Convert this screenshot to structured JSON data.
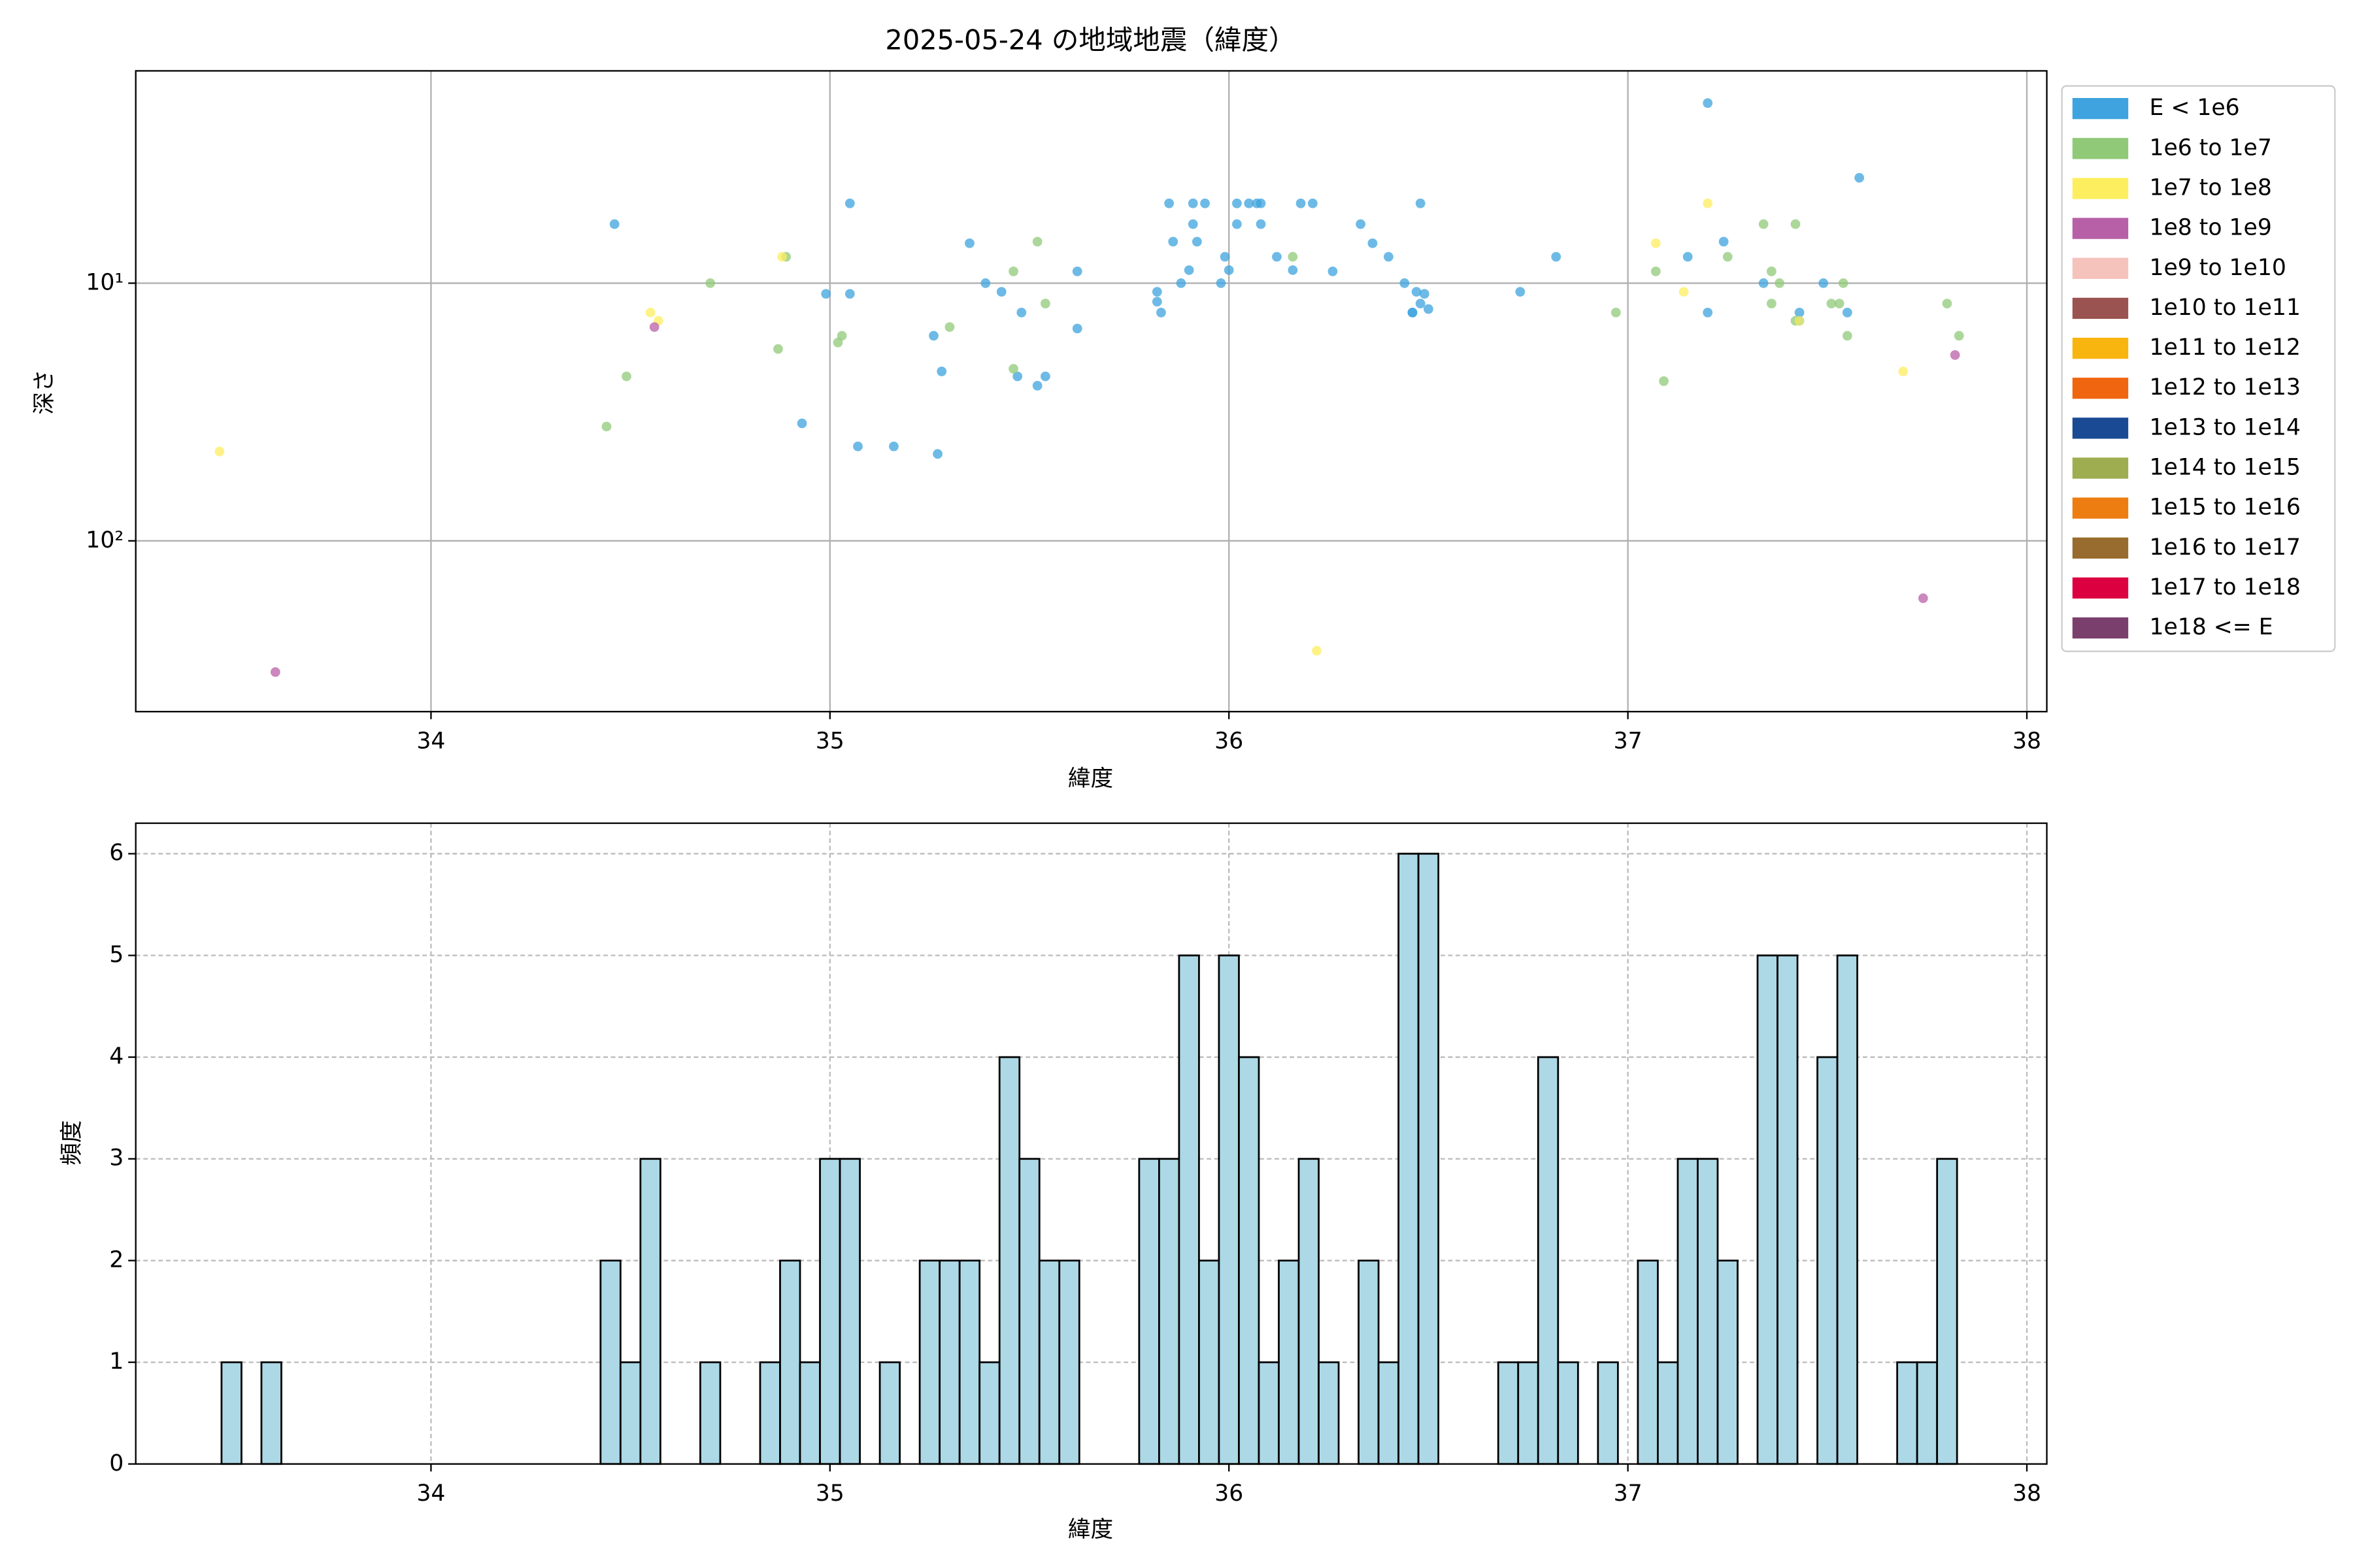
{
  "chart_data": [
    {
      "type": "scatter",
      "title": "2025-05-24 の地域地震（緯度）",
      "xlabel": "緯度",
      "ylabel": "深さ",
      "xlim": [
        33.26,
        38.05
      ],
      "xticks": [
        34,
        35,
        36,
        37,
        38
      ],
      "ylim": [
        460,
        1.5
      ],
      "yscale": "log",
      "yticks": [
        {
          "value": 10,
          "label": "10¹"
        },
        {
          "value": 100,
          "label": "10²"
        }
      ],
      "grid": true,
      "legend": "outside right",
      "series": [
        {
          "name": "E < 1e6",
          "color": "#3ea3de",
          "x": [
            34.46,
            35.05,
            34.99,
            35.05,
            34.93,
            35.07,
            35.16,
            35.27,
            35.26,
            35.28,
            35.35,
            35.39,
            35.43,
            35.47,
            35.48,
            35.52,
            35.54,
            35.62,
            35.62,
            35.82,
            35.82,
            35.83,
            35.85,
            35.86,
            35.88,
            35.9,
            35.91,
            35.91,
            35.92,
            35.94,
            35.98,
            35.99,
            36.0,
            36.02,
            36.02,
            36.05,
            36.07,
            36.08,
            36.08,
            36.12,
            36.16,
            36.18,
            36.21,
            36.26,
            36.33,
            36.36,
            36.4,
            36.44,
            36.46,
            36.47,
            36.48,
            36.49,
            36.48,
            36.5,
            36.46,
            36.73,
            36.82,
            37.15,
            37.2,
            37.2,
            37.24,
            37.34,
            37.43,
            37.43,
            37.49,
            37.55,
            37.58
          ],
          "values": [
            5.9,
            4.9,
            11,
            11,
            35,
            43,
            43,
            46,
            16,
            22,
            7,
            10,
            10.8,
            23,
            13,
            25,
            23,
            9,
            15,
            10.8,
            11.8,
            13,
            4.9,
            6.9,
            10,
            8.9,
            5.9,
            4.9,
            6.9,
            4.9,
            10,
            7.9,
            8.9,
            4.9,
            5.9,
            4.9,
            4.9,
            4.9,
            5.9,
            7.9,
            8.9,
            4.9,
            4.9,
            9,
            5.9,
            7,
            7.9,
            10,
            13,
            10.8,
            12,
            11,
            4.9,
            12.6,
            13,
            10.8,
            7.9,
            7.9,
            2,
            13,
            6.9,
            10,
            13,
            14,
            10,
            13,
            3.9
          ]
        },
        {
          "name": "1e6 to 1e7",
          "color": "#90c978",
          "x": [
            34.44,
            34.49,
            34.7,
            34.87,
            34.89,
            35.02,
            35.03,
            35.3,
            35.46,
            35.46,
            35.52,
            35.54,
            36.16,
            36.97,
            37.07,
            37.09,
            37.25,
            37.34,
            37.36,
            37.36,
            37.38,
            37.42,
            37.42,
            37.51,
            37.53,
            37.54,
            37.55,
            37.8,
            37.83
          ],
          "values": [
            36,
            23,
            10,
            18,
            7.9,
            17,
            16,
            14.8,
            9,
            21.5,
            6.9,
            12,
            7.9,
            13,
            9,
            24,
            7.9,
            5.9,
            12,
            9,
            10,
            5.9,
            14,
            12,
            12,
            10,
            16,
            12,
            16
          ]
        },
        {
          "name": "1e7 to 1e8",
          "color": "#fdee5f",
          "x": [
            33.47,
            34.55,
            34.57,
            34.88,
            36.22,
            37.07,
            37.14,
            37.2,
            37.43,
            37.69
          ],
          "values": [
            45,
            13,
            14,
            7.9,
            267,
            7,
            10.8,
            4.9,
            14,
            22
          ]
        },
        {
          "name": "1e8 to 1e9",
          "color": "#b860a7",
          "x": [
            33.61,
            34.56,
            37.74,
            37.82
          ],
          "values": [
            323,
            14.8,
            167,
            19
          ]
        },
        {
          "name": "1e9 to 1e10",
          "color": "#f5c2bc",
          "x": [],
          "values": []
        },
        {
          "name": "1e10 to 1e11",
          "color": "#9a5350",
          "x": [],
          "values": []
        },
        {
          "name": "1e11 to 1e12",
          "color": "#f8b50f",
          "x": [],
          "values": []
        },
        {
          "name": "1e12 to 1e13",
          "color": "#f06510",
          "x": [],
          "values": []
        },
        {
          "name": "1e13 to 1e14",
          "color": "#1b4a94",
          "x": [],
          "values": []
        },
        {
          "name": "1e14 to 1e15",
          "color": "#9ead4f",
          "x": [],
          "values": []
        },
        {
          "name": "1e15 to 1e16",
          "color": "#ed7d10",
          "x": [],
          "values": []
        },
        {
          "name": "1e16 to 1e17",
          "color": "#986c2e",
          "x": [],
          "values": []
        },
        {
          "name": "1e17 to 1e18",
          "color": "#dc0041",
          "x": [],
          "values": []
        },
        {
          "name": "1e18 <= E",
          "color": "#7a3f6d",
          "x": [],
          "values": []
        }
      ]
    },
    {
      "type": "histogram",
      "xlabel": "緯度",
      "ylabel": "頻度",
      "color": "#add8e6",
      "edgecolor": "#000000",
      "xlim": [
        33.26,
        38.05
      ],
      "xticks": [
        34,
        35,
        36,
        37,
        38
      ],
      "ylim": [
        0,
        6.3
      ],
      "yticks": [
        0,
        1,
        2,
        3,
        4,
        5,
        6
      ],
      "grid": true,
      "grid_linestyle": "dashed",
      "bins": [
        33.475,
        33.525,
        33.575,
        33.625,
        33.675,
        33.725,
        33.775,
        33.825,
        33.875,
        33.925,
        33.975,
        34.025,
        34.075,
        34.125,
        34.175,
        34.225,
        34.275,
        34.325,
        34.375,
        34.425,
        34.475,
        34.525,
        34.575,
        34.625,
        34.675,
        34.725,
        34.775,
        34.825,
        34.875,
        34.925,
        34.975,
        35.025,
        35.075,
        35.125,
        35.175,
        35.225,
        35.275,
        35.325,
        35.375,
        35.425,
        35.475,
        35.525,
        35.575,
        35.625,
        35.675,
        35.725,
        35.775,
        35.825,
        35.875,
        35.925,
        35.975,
        36.025,
        36.075,
        36.125,
        36.175,
        36.225,
        36.275,
        36.325,
        36.375,
        36.425,
        36.475,
        36.525,
        36.575,
        36.625,
        36.675,
        36.725,
        36.775,
        36.825,
        36.875,
        36.925,
        36.975,
        37.025,
        37.075,
        37.125,
        37.175,
        37.225,
        37.275,
        37.325,
        37.375,
        37.425,
        37.475,
        37.525,
        37.575,
        37.625,
        37.675,
        37.725,
        37.775,
        37.825
      ],
      "values": [
        1,
        0,
        1,
        0,
        0,
        0,
        0,
        0,
        0,
        0,
        0,
        0,
        0,
        0,
        0,
        0,
        0,
        0,
        0,
        2,
        1,
        3,
        0,
        0,
        1,
        0,
        0,
        1,
        2,
        1,
        3,
        3,
        0,
        1,
        0,
        2,
        2,
        2,
        1,
        4,
        3,
        2,
        2,
        0,
        0,
        0,
        3,
        3,
        5,
        2,
        5,
        4,
        1,
        2,
        3,
        1,
        0,
        2,
        1,
        6,
        6,
        0,
        0,
        0,
        1,
        1,
        4,
        1,
        0,
        1,
        0,
        2,
        1,
        3,
        3,
        2,
        0,
        5,
        5,
        0,
        4,
        5,
        0,
        0,
        1,
        1,
        3
      ]
    }
  ]
}
